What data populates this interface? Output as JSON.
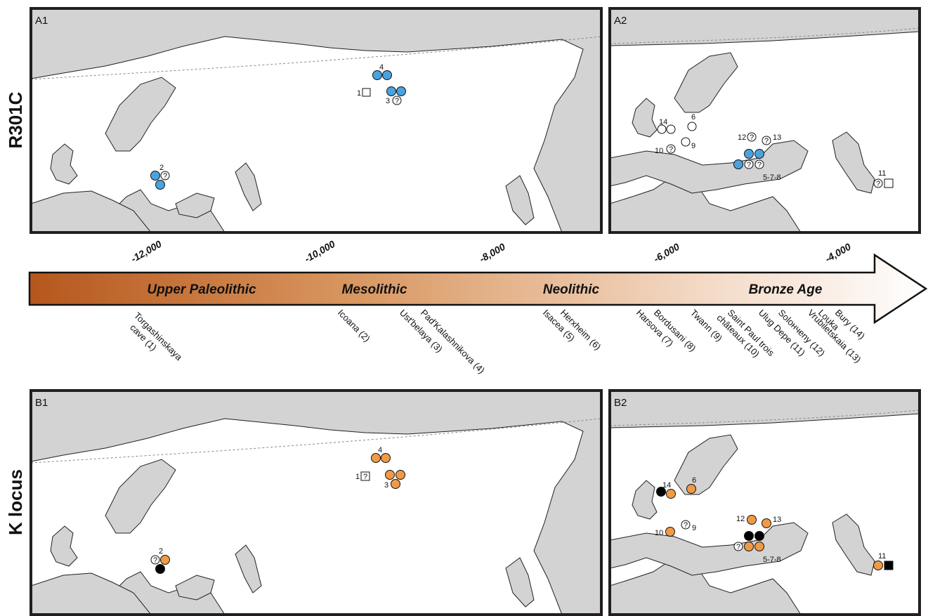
{
  "figure": {
    "row_labels": {
      "top": "R301C",
      "bottom": "K locus"
    },
    "panels": {
      "a1": "A1",
      "a2": "A2",
      "b1": "B1",
      "b2": "B2"
    },
    "timeline": {
      "ticks": [
        "-12,000",
        "-10,000",
        "-8,000",
        "-6,000",
        "-4,000"
      ],
      "periods": [
        "Upper Paleolithic",
        "Mesolithic",
        "Neolithic",
        "Bronze Age"
      ],
      "sites": [
        "Torgashinskaya cave (1)",
        "Icoana (2)",
        "Ust'belaya (3)",
        "Pad'Kalashnikova (4)",
        "Isacea (5)",
        "Herxheim (6)",
        "Harsova (7)",
        "Bordusani (8)",
        "Twann (9)",
        "Saint Paul trois châteaux (10)",
        "Ulug Depe (11)",
        "Solончeny (12)",
        "Vrubiletskaia (13)",
        "Louka",
        "Bury (14)"
      ]
    },
    "marker_numbers": {
      "a1": [
        "4",
        "1",
        "3",
        "2"
      ],
      "a2": [
        "14",
        "6",
        "12",
        "13",
        "10",
        "9",
        "5-7-8",
        "11"
      ],
      "b1": [
        "4",
        "1",
        "3",
        "2"
      ],
      "b2": [
        "14",
        "6",
        "12",
        "13",
        "9",
        "10",
        "5-7-8",
        "11"
      ]
    },
    "colors": {
      "land": "#d3d3d3",
      "water": "#ffffff",
      "coast": "#231f20",
      "r301c_marker": "#4aa3df",
      "k_locus_marker": "#f19a45",
      "k_other_marker": "#000000",
      "arrow_dark": "#b5571d",
      "arrow_light": "#ffffff"
    }
  }
}
